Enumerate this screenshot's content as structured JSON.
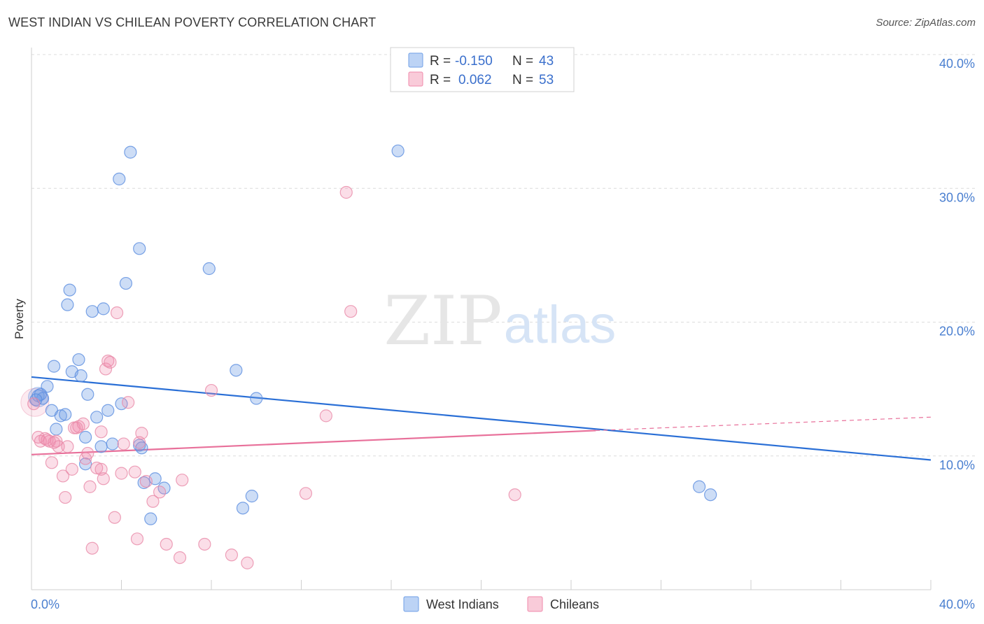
{
  "title": "WEST INDIAN VS CHILEAN POVERTY CORRELATION CHART",
  "source": "Source: ZipAtlas.com",
  "watermark": {
    "zip": "ZIP",
    "atlas": "atlas"
  },
  "colors": {
    "west_indians": "#6f9fe6",
    "chileans": "#f08aab",
    "west_indians_line": "#2a6fd6",
    "chileans_line": "#e8709a",
    "grid": "#dcdcdc",
    "tick_text": "#4a7fd0"
  },
  "legend": {
    "rows": [
      {
        "r_label": "R =",
        "r_value": "-0.150",
        "n_label": "N =",
        "n_value": "43"
      },
      {
        "r_label": "R =",
        "r_value": "0.062",
        "n_label": "N =",
        "n_value": "53"
      }
    ]
  },
  "chart_data": {
    "type": "scatter",
    "title": "WEST INDIAN VS CHILEAN POVERTY CORRELATION CHART",
    "xlabel": "",
    "ylabel": "Poverty",
    "xlim": [
      0,
      40
    ],
    "ylim": [
      0,
      40
    ],
    "x_tick_labels": [
      "0.0%",
      "40.0%"
    ],
    "y_tick_labels": [
      "10.0%",
      "20.0%",
      "30.0%",
      "40.0%"
    ],
    "y_ticks": [
      10,
      20,
      30,
      40
    ],
    "grid": true,
    "legend_position": "bottom",
    "series": [
      {
        "name": "West Indians",
        "r": -0.15,
        "n": 43,
        "trend": {
          "x": [
            0,
            40
          ],
          "y": [
            15.9,
            9.7
          ]
        },
        "points": [
          [
            0.3,
            14.5
          ],
          [
            0.5,
            14.3
          ],
          [
            0.4,
            14.6
          ],
          [
            0.7,
            15.2
          ],
          [
            0.9,
            13.4
          ],
          [
            1.0,
            16.7
          ],
          [
            1.1,
            12.0
          ],
          [
            1.3,
            13.0
          ],
          [
            1.5,
            13.1
          ],
          [
            1.6,
            21.3
          ],
          [
            1.7,
            22.4
          ],
          [
            1.8,
            16.3
          ],
          [
            2.1,
            17.2
          ],
          [
            2.2,
            16.0
          ],
          [
            2.4,
            11.4
          ],
          [
            2.5,
            14.6
          ],
          [
            2.7,
            20.8
          ],
          [
            2.9,
            12.9
          ],
          [
            3.1,
            10.7
          ],
          [
            3.2,
            21.0
          ],
          [
            3.4,
            13.4
          ],
          [
            3.6,
            10.9
          ],
          [
            3.9,
            30.7
          ],
          [
            4.0,
            13.9
          ],
          [
            4.2,
            22.9
          ],
          [
            4.4,
            32.7
          ],
          [
            4.8,
            25.5
          ],
          [
            4.8,
            10.8
          ],
          [
            5.0,
            8.0
          ],
          [
            5.3,
            5.3
          ],
          [
            5.5,
            8.3
          ],
          [
            5.9,
            7.6
          ],
          [
            9.1,
            16.4
          ],
          [
            9.4,
            6.1
          ],
          [
            9.8,
            7.0
          ],
          [
            10.0,
            14.3
          ],
          [
            7.9,
            24.0
          ],
          [
            16.3,
            32.8
          ],
          [
            29.7,
            7.7
          ],
          [
            30.2,
            7.1
          ],
          [
            2.4,
            9.4
          ],
          [
            0.2,
            14.2
          ],
          [
            4.9,
            10.6
          ]
        ]
      },
      {
        "name": "Chileans",
        "r": 0.062,
        "n": 53,
        "trend": {
          "x": [
            0,
            25.1
          ],
          "y": [
            10.1,
            11.9
          ],
          "x_dashed_end": 40,
          "y_dashed_end": 12.9
        },
        "points": [
          [
            0.1,
            13.9
          ],
          [
            0.3,
            11.4
          ],
          [
            0.4,
            11.1
          ],
          [
            0.6,
            11.3
          ],
          [
            0.8,
            11.1
          ],
          [
            0.9,
            9.5
          ],
          [
            1.1,
            11.1
          ],
          [
            1.2,
            10.7
          ],
          [
            1.4,
            8.5
          ],
          [
            1.5,
            6.9
          ],
          [
            1.6,
            10.7
          ],
          [
            1.8,
            9.0
          ],
          [
            1.9,
            12.1
          ],
          [
            2.1,
            12.2
          ],
          [
            2.3,
            12.4
          ],
          [
            2.4,
            9.8
          ],
          [
            2.5,
            10.2
          ],
          [
            2.6,
            7.7
          ],
          [
            2.7,
            3.1
          ],
          [
            2.9,
            9.1
          ],
          [
            3.1,
            9.0
          ],
          [
            3.1,
            11.8
          ],
          [
            3.2,
            8.3
          ],
          [
            3.3,
            16.5
          ],
          [
            3.4,
            17.1
          ],
          [
            3.5,
            17.0
          ],
          [
            3.7,
            5.4
          ],
          [
            3.8,
            20.7
          ],
          [
            4.0,
            8.7
          ],
          [
            4.1,
            10.9
          ],
          [
            4.3,
            14.0
          ],
          [
            4.6,
            8.8
          ],
          [
            4.7,
            3.8
          ],
          [
            4.8,
            11.0
          ],
          [
            4.9,
            11.7
          ],
          [
            5.1,
            8.1
          ],
          [
            5.4,
            6.6
          ],
          [
            5.7,
            7.3
          ],
          [
            6.0,
            3.4
          ],
          [
            6.6,
            2.4
          ],
          [
            6.7,
            8.2
          ],
          [
            7.7,
            3.4
          ],
          [
            8.0,
            14.9
          ],
          [
            8.9,
            2.6
          ],
          [
            9.6,
            2.0
          ],
          [
            12.2,
            7.2
          ],
          [
            13.1,
            13.0
          ],
          [
            14.0,
            29.7
          ],
          [
            14.2,
            20.8
          ],
          [
            21.5,
            7.1
          ],
          [
            2.0,
            12.1
          ],
          [
            0.7,
            11.2
          ],
          [
            1.0,
            11.0
          ]
        ]
      }
    ]
  },
  "bottom_legend": {
    "items": [
      {
        "label": "West Indians"
      },
      {
        "label": "Chileans"
      }
    ]
  }
}
